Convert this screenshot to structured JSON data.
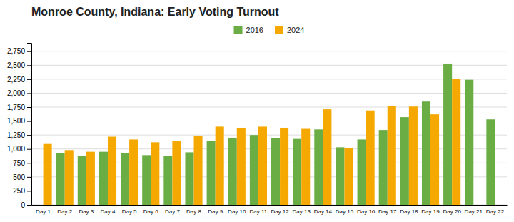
{
  "chart_data": {
    "type": "bar",
    "title": "Monroe County, Indiana: Early Voting Turnout",
    "categories": [
      "Day 1",
      "Day 2",
      "Day 3",
      "Day 4",
      "Day 5",
      "Day 6",
      "Day 7",
      "Day 8",
      "Day 9",
      "Day 10",
      "Day 11",
      "Day 12",
      "Day 13",
      "Day 14",
      "Day 15",
      "Day 16",
      "Day 17",
      "Day 18",
      "Day 19",
      "Day 20",
      "Day 21",
      "Day 22"
    ],
    "series": [
      {
        "name": "2016",
        "color": "#6aad45",
        "values": [
          0,
          920,
          870,
          950,
          920,
          890,
          870,
          940,
          1150,
          1200,
          1250,
          1190,
          1180,
          1350,
          1030,
          1170,
          1340,
          1570,
          1850,
          2530,
          2240,
          1530
        ]
      },
      {
        "name": "2024",
        "color": "#f5a800",
        "values": [
          1090,
          980,
          950,
          1220,
          1170,
          1120,
          1150,
          1240,
          1400,
          1380,
          1400,
          1380,
          1360,
          1710,
          1020,
          1690,
          1770,
          1760,
          1620,
          2260,
          0,
          0
        ]
      }
    ],
    "ylim": [
      0,
      2900
    ],
    "yticks": [
      0,
      250,
      500,
      750,
      {
        "value": 1000,
        "label": "1,000"
      },
      {
        "value": 1250,
        "label": "1,250"
      },
      {
        "value": 1500,
        "label": "1,500"
      },
      {
        "value": 1750,
        "label": "1,750"
      },
      {
        "value": 2000,
        "label": "2,000"
      },
      {
        "value": 2250,
        "label": "2,250"
      },
      {
        "value": 2500,
        "label": "2,500"
      },
      {
        "value": 2750,
        "label": "2,750"
      }
    ],
    "grid": true,
    "legend": "top"
  }
}
